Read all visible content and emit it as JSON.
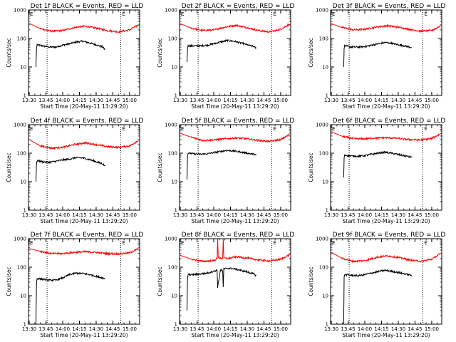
{
  "chart_data": [
    {
      "type": "line",
      "title": "Det 1f BLACK = Events, RED = LLD",
      "xlabel": "Start Time (20-May-11 13:29:20)",
      "ylabel": "Counts/sec",
      "x_tick_labels": [
        "13:30",
        "13:45",
        "14:00",
        "14:15",
        "14:30",
        "14:45",
        "15:00"
      ],
      "y_tick_labels": [
        "1000",
        "100",
        "10",
        "1"
      ],
      "ylim": [
        1,
        1000
      ],
      "yscale": "log",
      "xlim": [
        "13:29:20",
        "15:09:00"
      ],
      "markers": [
        {
          "label": "E",
          "x": "13:46"
        },
        {
          "label": "E",
          "x": "14:52"
        }
      ],
      "series": [
        {
          "name": "Events",
          "color": "#000000",
          "x": [
            "13:36",
            "13:36:30",
            "13:37",
            "13:42",
            "13:48",
            "13:54",
            "14:00",
            "14:06",
            "14:12",
            "14:18",
            "14:24",
            "14:30",
            "14:36",
            "14:38"
          ],
          "values": [
            10,
            40,
            60,
            55,
            50,
            50,
            58,
            65,
            75,
            80,
            70,
            60,
            50,
            40
          ]
        },
        {
          "name": "LLD",
          "color": "#ff0000",
          "x": [
            "13:30",
            "13:40",
            "13:50",
            "14:00",
            "14:10",
            "14:20",
            "14:30",
            "14:40",
            "14:50",
            "15:00",
            "15:08"
          ],
          "values": [
            340,
            220,
            180,
            190,
            240,
            270,
            230,
            190,
            170,
            200,
            300
          ]
        }
      ]
    },
    {
      "type": "line",
      "title": "Det 2f BLACK = Events, RED = LLD",
      "xlabel": "Start Time (20-May-11 13:29:20)",
      "ylabel": "Counts/sec",
      "x_tick_labels": [
        "13:30",
        "13:45",
        "14:00",
        "14:15",
        "14:30",
        "14:45",
        "15:00"
      ],
      "y_tick_labels": [
        "1000",
        "100",
        "10",
        "1"
      ],
      "ylim": [
        1,
        1000
      ],
      "yscale": "log",
      "xlim": [
        "13:29:20",
        "15:09:00"
      ],
      "markers": [
        {
          "label": "E",
          "x": "13:46"
        },
        {
          "label": "E",
          "x": "14:52"
        }
      ],
      "series": [
        {
          "name": "Events",
          "color": "#000000",
          "x": [
            "13:36",
            "13:36:30",
            "13:37",
            "13:42",
            "13:48",
            "13:54",
            "14:00",
            "14:06",
            "14:12",
            "14:18",
            "14:24",
            "14:30",
            "14:36",
            "14:38"
          ],
          "values": [
            15,
            45,
            55,
            55,
            55,
            58,
            65,
            75,
            85,
            80,
            70,
            60,
            52,
            45
          ]
        },
        {
          "name": "LLD",
          "color": "#ff0000",
          "x": [
            "13:30",
            "13:40",
            "13:50",
            "14:00",
            "14:10",
            "14:20",
            "14:30",
            "14:40",
            "14:50",
            "15:00",
            "15:08"
          ],
          "values": [
            330,
            230,
            190,
            200,
            250,
            290,
            240,
            190,
            170,
            210,
            320
          ]
        }
      ]
    },
    {
      "type": "line",
      "title": "Det 3f BLACK = Events, RED = LLD",
      "xlabel": "Start Time (20-May-11 13:29:20)",
      "ylabel": "Counts/sec",
      "x_tick_labels": [
        "13:30",
        "13:45",
        "14:00",
        "14:15",
        "14:30",
        "14:45",
        "15:00"
      ],
      "y_tick_labels": [
        "1000",
        "100",
        "10",
        "1"
      ],
      "ylim": [
        1,
        1000
      ],
      "yscale": "log",
      "xlim": [
        "13:29:20",
        "15:09:00"
      ],
      "markers": [
        {
          "label": "E",
          "x": "13:46"
        },
        {
          "label": "E",
          "x": "14:52"
        }
      ],
      "series": [
        {
          "name": "Events",
          "color": "#000000",
          "x": [
            "13:41",
            "13:41:30",
            "13:42",
            "13:48",
            "13:54",
            "14:00",
            "14:06",
            "14:12",
            "14:18",
            "14:24",
            "14:30",
            "14:36",
            "14:42"
          ],
          "values": [
            10,
            45,
            55,
            50,
            50,
            52,
            58,
            65,
            72,
            68,
            60,
            55,
            48
          ]
        },
        {
          "name": "LLD",
          "color": "#ff0000",
          "x": [
            "13:30",
            "13:40",
            "13:50",
            "14:00",
            "14:10",
            "14:20",
            "14:30",
            "14:40",
            "14:50",
            "15:00",
            "15:08"
          ],
          "values": [
            330,
            240,
            200,
            210,
            250,
            280,
            250,
            210,
            180,
            190,
            280
          ]
        }
      ]
    },
    {
      "type": "line",
      "title": "Det 4f BLACK = Events, RED = LLD",
      "xlabel": "Start Time (20-May-11 13:29:20)",
      "ylabel": "Counts/sec",
      "x_tick_labels": [
        "13:30",
        "13:45",
        "14:00",
        "14:15",
        "14:30",
        "14:45",
        "15:00"
      ],
      "y_tick_labels": [
        "1000",
        "100",
        "10",
        "1"
      ],
      "ylim": [
        1,
        1000
      ],
      "yscale": "log",
      "xlim": [
        "13:29:20",
        "15:09:00"
      ],
      "markers": [
        {
          "label": "E",
          "x": "13:46"
        },
        {
          "label": "E",
          "x": "14:52"
        }
      ],
      "series": [
        {
          "name": "Events",
          "color": "#000000",
          "x": [
            "13:36",
            "13:36:30",
            "13:37",
            "13:42",
            "13:48",
            "13:54",
            "14:00",
            "14:06",
            "14:12",
            "14:18",
            "14:24",
            "14:30",
            "14:36",
            "14:38"
          ],
          "values": [
            10,
            40,
            55,
            50,
            48,
            52,
            58,
            62,
            70,
            68,
            60,
            50,
            42,
            35
          ]
        },
        {
          "name": "LLD",
          "color": "#ff0000",
          "x": [
            "13:30",
            "13:40",
            "13:50",
            "14:00",
            "14:10",
            "14:20",
            "14:30",
            "14:40",
            "14:50",
            "15:00",
            "15:08"
          ],
          "values": [
            300,
            180,
            150,
            160,
            200,
            230,
            200,
            170,
            160,
            180,
            280
          ]
        }
      ]
    },
    {
      "type": "line",
      "title": "Det 5f BLACK = Events, RED = LLD",
      "xlabel": "Start Time (20-May-11 13:29:20)",
      "ylabel": "Counts/sec",
      "x_tick_labels": [
        "13:30",
        "13:45",
        "14:00",
        "14:15",
        "14:30",
        "14:45",
        "15:00"
      ],
      "y_tick_labels": [
        "1000",
        "100",
        "10",
        "1"
      ],
      "ylim": [
        1,
        1000
      ],
      "yscale": "log",
      "xlim": [
        "13:29:20",
        "15:09:00"
      ],
      "markers": [
        {
          "label": "E",
          "x": "13:46"
        },
        {
          "label": "E",
          "x": "14:52"
        }
      ],
      "series": [
        {
          "name": "Events",
          "color": "#000000",
          "x": [
            "13:36",
            "13:36:30",
            "13:37",
            "13:42",
            "13:48",
            "13:54",
            "14:00",
            "14:06",
            "14:12",
            "14:18",
            "14:24",
            "14:30",
            "14:36",
            "14:38"
          ],
          "values": [
            12,
            80,
            100,
            95,
            92,
            95,
            105,
            115,
            125,
            120,
            110,
            100,
            92,
            85
          ]
        },
        {
          "name": "LLD",
          "color": "#ff0000",
          "x": [
            "13:30",
            "13:40",
            "13:50",
            "14:00",
            "14:10",
            "14:20",
            "14:30",
            "14:40",
            "14:50",
            "15:00",
            "15:08"
          ],
          "values": [
            500,
            360,
            280,
            290,
            320,
            340,
            320,
            280,
            260,
            300,
            450
          ]
        }
      ]
    },
    {
      "type": "line",
      "title": "Det 6f BLACK = Events, RED = LLD",
      "xlabel": "Start Time (20-May-11 13:29:20)",
      "ylabel": "Counts/sec",
      "x_tick_labels": [
        "13:30",
        "13:45",
        "14:00",
        "14:15",
        "14:30",
        "14:45",
        "15:00"
      ],
      "y_tick_labels": [
        "1000",
        "100",
        "10",
        "1"
      ],
      "ylim": [
        1,
        1000
      ],
      "yscale": "log",
      "xlim": [
        "13:29:20",
        "15:09:00"
      ],
      "markers": [
        {
          "label": "E",
          "x": "13:46"
        },
        {
          "label": "E",
          "x": "14:52"
        }
      ],
      "series": [
        {
          "name": "Events",
          "color": "#000000",
          "x": [
            "13:41",
            "13:41:30",
            "13:42",
            "13:48",
            "13:54",
            "14:00",
            "14:06",
            "14:12",
            "14:18",
            "14:24",
            "14:30",
            "14:36",
            "14:42"
          ],
          "values": [
            14,
            70,
            85,
            80,
            78,
            82,
            92,
            100,
            108,
            100,
            90,
            80,
            72
          ]
        },
        {
          "name": "LLD",
          "color": "#ff0000",
          "x": [
            "13:30",
            "13:40",
            "13:50",
            "14:00",
            "14:10",
            "14:20",
            "14:30",
            "14:40",
            "14:50",
            "15:00",
            "15:08"
          ],
          "values": [
            560,
            390,
            320,
            320,
            340,
            350,
            330,
            300,
            290,
            330,
            480
          ]
        }
      ]
    },
    {
      "type": "line",
      "title": "Det 7f BLACK = Events, RED = LLD",
      "xlabel": "Start Time (20-May-11 13:29:20)",
      "ylabel": "Counts/sec",
      "x_tick_labels": [
        "13:30",
        "13:45",
        "14:00",
        "14:15",
        "14:30",
        "14:45",
        "15:00"
      ],
      "y_tick_labels": [
        "1000",
        "100",
        "10",
        "1"
      ],
      "ylim": [
        1,
        1000
      ],
      "yscale": "log",
      "xlim": [
        "13:29:20",
        "15:09:00"
      ],
      "markers": [
        {
          "label": "E",
          "x": "13:46"
        },
        {
          "label": "E",
          "x": "14:52"
        }
      ],
      "series": [
        {
          "name": "Events",
          "color": "#000000",
          "x": [
            "13:36",
            "13:36:30",
            "13:37",
            "13:42",
            "13:48",
            "13:54",
            "14:00",
            "14:06",
            "14:12",
            "14:18",
            "14:24",
            "14:30",
            "14:36",
            "14:38"
          ],
          "values": [
            1,
            25,
            40,
            38,
            35,
            35,
            42,
            55,
            62,
            60,
            55,
            48,
            42,
            40
          ]
        },
        {
          "name": "LLD",
          "color": "#ff0000",
          "x": [
            "13:30",
            "13:40",
            "13:50",
            "14:00",
            "14:10",
            "14:20",
            "14:30",
            "14:40",
            "14:50",
            "15:00",
            "15:08"
          ],
          "values": [
            450,
            360,
            300,
            300,
            330,
            350,
            330,
            300,
            290,
            320,
            450
          ]
        }
      ]
    },
    {
      "type": "line",
      "title": "Det 8f BLACK = Events, RED = LLD",
      "xlabel": "Start Time (20-May-11 13:29:20)",
      "ylabel": "Counts/sec",
      "x_tick_labels": [
        "13:30",
        "13:45",
        "14:00",
        "14:15",
        "14:30",
        "14:45",
        "15:00"
      ],
      "y_tick_labels": [
        "1000",
        "100",
        "10",
        "1"
      ],
      "ylim": [
        1,
        1000
      ],
      "yscale": "log",
      "xlim": [
        "13:29:20",
        "15:09:00"
      ],
      "markers": [
        {
          "label": "E",
          "x": "13:46"
        },
        {
          "label": "E",
          "x": "14:52"
        }
      ],
      "series": [
        {
          "name": "Events",
          "color": "#000000",
          "x": [
            "13:36",
            "13:36:30",
            "13:37",
            "13:42",
            "13:48",
            "13:54",
            "14:00",
            "14:03",
            "14:03:30",
            "14:06",
            "14:08",
            "14:08:30",
            "14:09",
            "14:12",
            "14:18",
            "14:24",
            "14:30",
            "14:36",
            "14:38"
          ],
          "values": [
            3,
            40,
            55,
            55,
            58,
            62,
            72,
            78,
            20,
            80,
            75,
            20,
            85,
            92,
            88,
            78,
            68,
            58,
            50
          ]
        },
        {
          "name": "LLD",
          "color": "#ff0000",
          "x": [
            "13:30",
            "13:40",
            "13:50",
            "14:00",
            "14:03",
            "14:03:30",
            "14:04",
            "14:08",
            "14:08:30",
            "14:09",
            "14:12",
            "14:20",
            "14:30",
            "14:40",
            "14:50",
            "15:00",
            "15:08"
          ],
          "values": [
            260,
            190,
            160,
            170,
            200,
            1000,
            220,
            200,
            1000,
            210,
            200,
            230,
            210,
            180,
            165,
            190,
            270
          ]
        }
      ]
    },
    {
      "type": "line",
      "title": "Det 9f BLACK = Events, RED = LLD",
      "xlabel": "Start Time (20-May-11 13:29:20)",
      "ylabel": "Counts/sec",
      "x_tick_labels": [
        "13:30",
        "13:45",
        "14:00",
        "14:15",
        "14:30",
        "14:45",
        "15:00"
      ],
      "y_tick_labels": [
        "1000",
        "100",
        "10",
        "1"
      ],
      "ylim": [
        1,
        1000
      ],
      "yscale": "log",
      "xlim": [
        "13:29:20",
        "15:09:00"
      ],
      "markers": [
        {
          "label": "E",
          "x": "13:46"
        },
        {
          "label": "E",
          "x": "14:52"
        }
      ],
      "series": [
        {
          "name": "Events",
          "color": "#000000",
          "x": [
            "13:41",
            "13:41:30",
            "13:42",
            "13:48",
            "13:54",
            "14:00",
            "14:06",
            "14:12",
            "14:18",
            "14:24",
            "14:30",
            "14:36",
            "14:42"
          ],
          "values": [
            1,
            45,
            55,
            52,
            50,
            55,
            62,
            70,
            78,
            72,
            65,
            58,
            52
          ]
        },
        {
          "name": "LLD",
          "color": "#ff0000",
          "x": [
            "13:30",
            "13:40",
            "13:50",
            "14:00",
            "14:10",
            "14:20",
            "14:30",
            "14:40",
            "14:50",
            "15:00",
            "15:08"
          ],
          "values": [
            330,
            200,
            160,
            170,
            220,
            250,
            220,
            180,
            160,
            190,
            300
          ]
        }
      ]
    }
  ]
}
